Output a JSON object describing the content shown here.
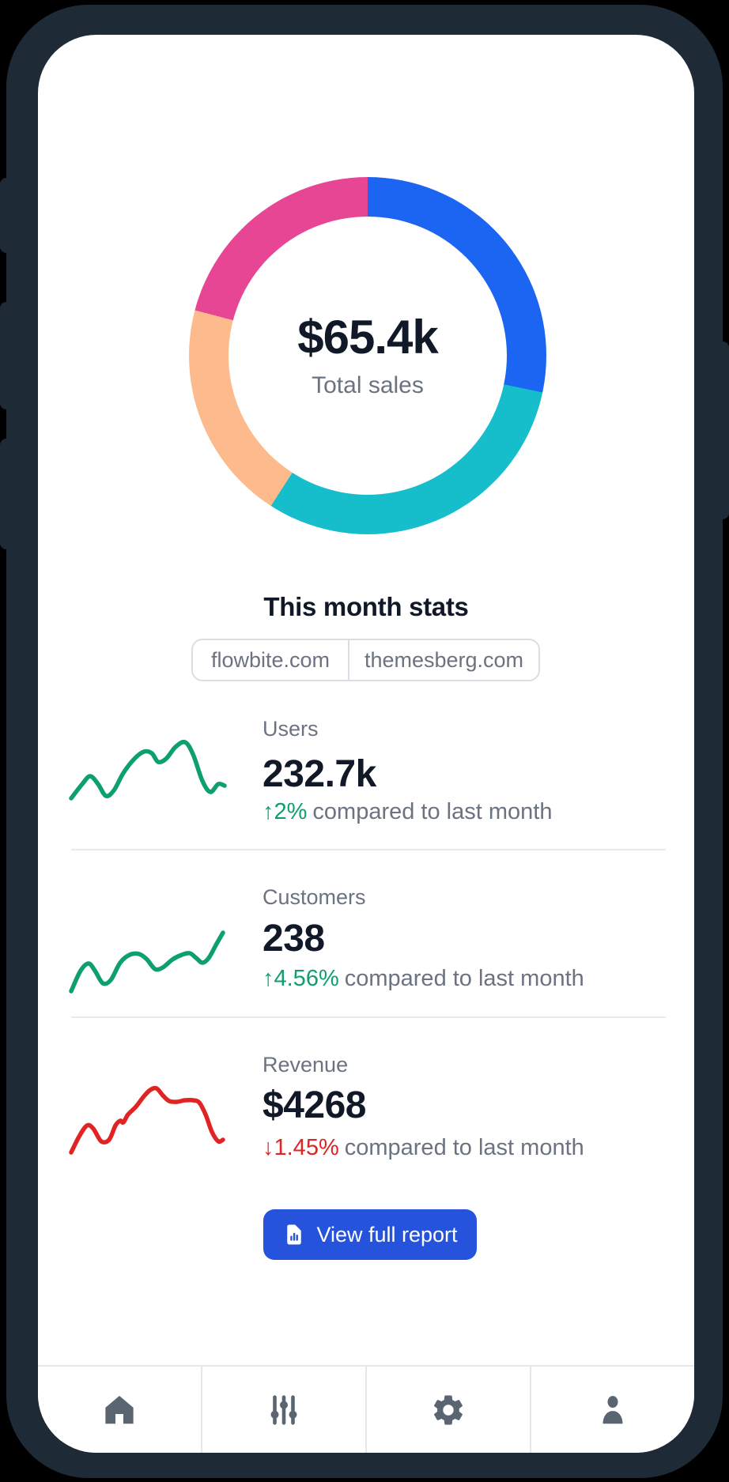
{
  "chart_data": [
    {
      "type": "donut",
      "center_value": "$65.4k",
      "center_label": "Total sales",
      "legend": "none",
      "segments": [
        {
          "name": "segment-blue",
          "color": "#1C64F2",
          "percent": 28.3
        },
        {
          "name": "segment-teal",
          "color": "#16BDCA",
          "percent": 30.8
        },
        {
          "name": "segment-orange",
          "color": "#FDBA8C",
          "percent": 20.0
        },
        {
          "name": "segment-pink",
          "color": "#E74694",
          "percent": 20.9
        }
      ]
    },
    {
      "type": "line",
      "name": "Users trend sparkline",
      "color": "#0E9F6E",
      "points": [
        [
          2,
          90
        ],
        [
          16,
          72
        ],
        [
          26,
          62
        ],
        [
          36,
          72
        ],
        [
          46,
          87
        ],
        [
          56,
          80
        ],
        [
          68,
          58
        ],
        [
          82,
          40
        ],
        [
          94,
          31
        ],
        [
          104,
          33
        ],
        [
          112,
          44
        ],
        [
          122,
          40
        ],
        [
          134,
          25
        ],
        [
          146,
          19
        ],
        [
          156,
          34
        ],
        [
          168,
          68
        ],
        [
          178,
          82
        ],
        [
          188,
          72
        ],
        [
          196,
          74
        ]
      ]
    },
    {
      "type": "line",
      "name": "Customers trend sparkline",
      "color": "#0E9F6E",
      "points": [
        [
          2,
          92
        ],
        [
          14,
          66
        ],
        [
          24,
          57
        ],
        [
          32,
          66
        ],
        [
          42,
          82
        ],
        [
          52,
          78
        ],
        [
          64,
          56
        ],
        [
          76,
          46
        ],
        [
          88,
          45
        ],
        [
          98,
          52
        ],
        [
          108,
          64
        ],
        [
          118,
          62
        ],
        [
          130,
          52
        ],
        [
          142,
          46
        ],
        [
          152,
          44
        ],
        [
          160,
          50
        ],
        [
          168,
          56
        ],
        [
          176,
          50
        ],
        [
          186,
          32
        ],
        [
          194,
          18
        ]
      ]
    },
    {
      "type": "line",
      "name": "Revenue trend sparkline",
      "color": "#E02424",
      "points": [
        [
          2,
          96
        ],
        [
          12,
          76
        ],
        [
          22,
          62
        ],
        [
          30,
          66
        ],
        [
          40,
          82
        ],
        [
          50,
          80
        ],
        [
          58,
          62
        ],
        [
          64,
          56
        ],
        [
          68,
          58
        ],
        [
          74,
          48
        ],
        [
          84,
          38
        ],
        [
          94,
          25
        ],
        [
          102,
          17
        ],
        [
          110,
          15
        ],
        [
          118,
          24
        ],
        [
          126,
          31
        ],
        [
          136,
          32
        ],
        [
          146,
          30
        ],
        [
          156,
          30
        ],
        [
          164,
          33
        ],
        [
          172,
          48
        ],
        [
          180,
          70
        ],
        [
          188,
          82
        ],
        [
          194,
          80
        ]
      ]
    }
  ],
  "stats": {
    "heading": "This month stats",
    "tabs": [
      {
        "label": "flowbite.com"
      },
      {
        "label": "themesberg.com"
      }
    ],
    "rows": [
      {
        "label": "Users",
        "value": "232.7k",
        "delta": "↑2%",
        "delta_color": "#0E9F6E",
        "suffix": "compared to last month"
      },
      {
        "label": "Customers",
        "value": "238",
        "delta": "↑4.56%",
        "delta_color": "#0E9F6E",
        "suffix": "compared to last month"
      },
      {
        "label": "Revenue",
        "value": "$4268",
        "delta": "↓1.45%",
        "delta_color": "#E02424",
        "suffix": "compared to last month"
      }
    ],
    "report_button": {
      "label": "View full report",
      "color": "#2553DB"
    }
  },
  "nav": {
    "items": [
      {
        "name": "home"
      },
      {
        "name": "sliders"
      },
      {
        "name": "settings"
      },
      {
        "name": "profile"
      }
    ],
    "icon_color": "#5B6572"
  }
}
